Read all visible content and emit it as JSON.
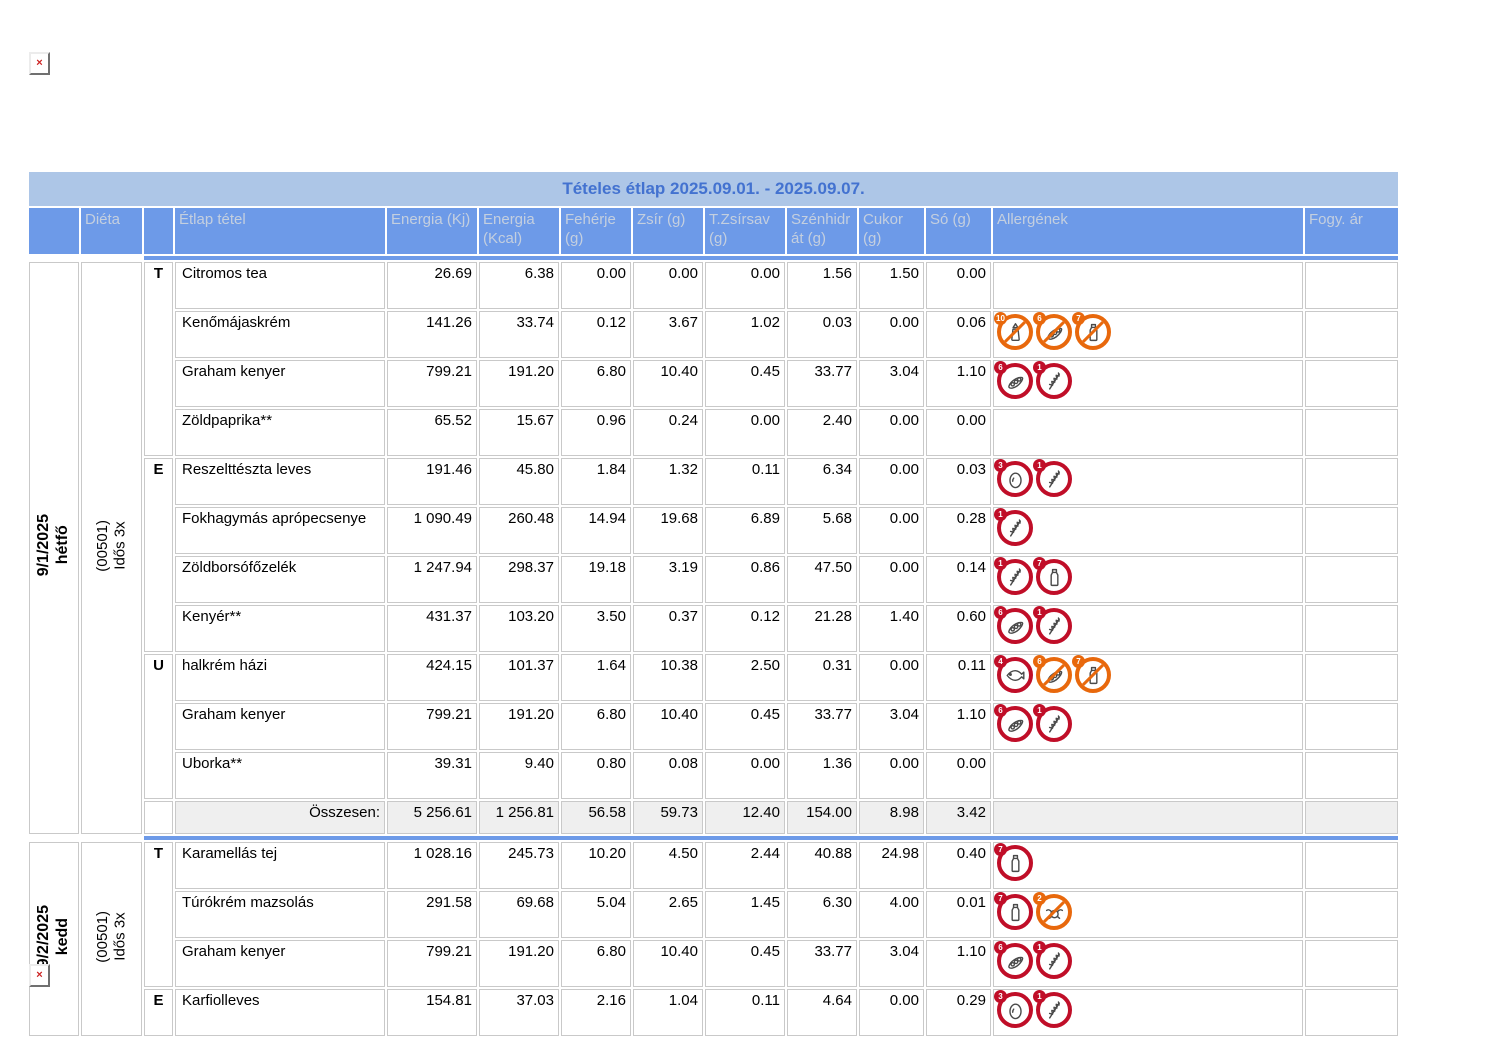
{
  "title": "Tételes étlap 2025.09.01. - 2025.09.07.",
  "broken_image_glyph": "×",
  "colors": {
    "header_blue": "#6d9ae8",
    "title_bar": "#adc6e7",
    "title_text": "#4372d0",
    "header_text": "#c4cfdf",
    "border": "#c9c9c9",
    "total_bg": "#efefef",
    "allergen_red": "#c00e28",
    "allergen_orange": "#e8680c",
    "broken_x": "#cc2222"
  },
  "columns": [
    {
      "key": "date",
      "label": ""
    },
    {
      "key": "dieta",
      "label": "Diéta"
    },
    {
      "key": "meal",
      "label": ""
    },
    {
      "key": "item",
      "label": "Étlap tétel"
    },
    {
      "key": "energia-kj",
      "label": "Energia (Kj)"
    },
    {
      "key": "energia-kcal",
      "label": "Energia (Kcal)"
    },
    {
      "key": "feherje",
      "label": "Fehérje (g)"
    },
    {
      "key": "zsir",
      "label": "Zsír (g)"
    },
    {
      "key": "t-zsirsav",
      "label": "T.Zsírsav (g)"
    },
    {
      "key": "szenhidrat",
      "label": "Szénhidrát (g)"
    },
    {
      "key": "cukor",
      "label": "Cukor (g)"
    },
    {
      "key": "so",
      "label": "Só (g)"
    },
    {
      "key": "allergenek",
      "label": "Allergének"
    },
    {
      "key": "fogy-ar",
      "label": "Fogy. ár"
    }
  ],
  "allergen_defs": {
    "gluten": {
      "num": "1",
      "icon": "wheat-icon"
    },
    "shellfish": {
      "num": "2",
      "icon": "crab-icon"
    },
    "egg": {
      "num": "3",
      "icon": "egg-icon"
    },
    "fish": {
      "num": "4",
      "icon": "fish-icon"
    },
    "soy": {
      "num": "6",
      "icon": "soy-pod-icon"
    },
    "milk": {
      "num": "7",
      "icon": "milk-bottle-icon"
    },
    "mustard": {
      "num": "10",
      "icon": "mustard-bottle-icon"
    }
  },
  "days": [
    {
      "date": "9/1/2025",
      "day_name": "hétfő",
      "diet_code": "(00501)",
      "diet_name": "Idős 3x",
      "rows": [
        {
          "meal": "T",
          "meal_rowspan": 4,
          "name": "Citromos tea",
          "values": [
            "26.69",
            "6.38",
            "0.00",
            "0.00",
            "0.00",
            "1.56",
            "1.50",
            "0.00"
          ],
          "allergens": []
        },
        {
          "name": "Kenőmájaskrém",
          "values": [
            "141.26",
            "33.74",
            "0.12",
            "3.67",
            "1.02",
            "0.03",
            "0.00",
            "0.06"
          ],
          "allergens": [
            {
              "type": "mustard",
              "state": "traces"
            },
            {
              "type": "soy",
              "state": "traces"
            },
            {
              "type": "milk",
              "state": "traces"
            }
          ]
        },
        {
          "name": "Graham kenyer",
          "values": [
            "799.21",
            "191.20",
            "6.80",
            "10.40",
            "0.45",
            "33.77",
            "3.04",
            "1.10"
          ],
          "allergens": [
            {
              "type": "soy",
              "state": "contains"
            },
            {
              "type": "gluten",
              "state": "contains"
            }
          ]
        },
        {
          "name": "Zöldpaprika**",
          "values": [
            "65.52",
            "15.67",
            "0.96",
            "0.24",
            "0.00",
            "2.40",
            "0.00",
            "0.00"
          ],
          "allergens": []
        },
        {
          "meal": "E",
          "meal_rowspan": 4,
          "name": "Reszelttészta leves",
          "values": [
            "191.46",
            "45.80",
            "1.84",
            "1.32",
            "0.11",
            "6.34",
            "0.00",
            "0.03"
          ],
          "allergens": [
            {
              "type": "egg",
              "state": "contains"
            },
            {
              "type": "gluten",
              "state": "contains"
            }
          ]
        },
        {
          "name": "Fokhagymás aprópecsenye",
          "values": [
            "1 090.49",
            "260.48",
            "14.94",
            "19.68",
            "6.89",
            "5.68",
            "0.00",
            "0.28"
          ],
          "allergens": [
            {
              "type": "gluten",
              "state": "contains"
            }
          ]
        },
        {
          "name": "Zöldborsófőzelék",
          "values": [
            "1 247.94",
            "298.37",
            "19.18",
            "3.19",
            "0.86",
            "47.50",
            "0.00",
            "0.14"
          ],
          "allergens": [
            {
              "type": "gluten",
              "state": "contains"
            },
            {
              "type": "milk",
              "state": "contains"
            }
          ]
        },
        {
          "name": "Kenyér**",
          "values": [
            "431.37",
            "103.20",
            "3.50",
            "0.37",
            "0.12",
            "21.28",
            "1.40",
            "0.60"
          ],
          "allergens": [
            {
              "type": "soy",
              "state": "contains"
            },
            {
              "type": "gluten",
              "state": "contains"
            }
          ]
        },
        {
          "meal": "U",
          "meal_rowspan": 3,
          "name": "halkrém házi",
          "values": [
            "424.15",
            "101.37",
            "1.64",
            "10.38",
            "2.50",
            "0.31",
            "0.00",
            "0.11"
          ],
          "allergens": [
            {
              "type": "fish",
              "state": "contains"
            },
            {
              "type": "soy",
              "state": "traces"
            },
            {
              "type": "milk",
              "state": "traces"
            }
          ]
        },
        {
          "name": "Graham kenyer",
          "values": [
            "799.21",
            "191.20",
            "6.80",
            "10.40",
            "0.45",
            "33.77",
            "3.04",
            "1.10"
          ],
          "allergens": [
            {
              "type": "soy",
              "state": "contains"
            },
            {
              "type": "gluten",
              "state": "contains"
            }
          ]
        },
        {
          "name": "Uborka**",
          "values": [
            "39.31",
            "9.40",
            "0.80",
            "0.08",
            "0.00",
            "1.36",
            "0.00",
            "0.00"
          ],
          "allergens": []
        }
      ],
      "total": {
        "label": "Összesen:",
        "values": [
          "5 256.61",
          "1 256.81",
          "56.58",
          "59.73",
          "12.40",
          "154.00",
          "8.98",
          "3.42"
        ]
      }
    },
    {
      "date": "9/2/2025",
      "day_name": "kedd",
      "diet_code": "(00501)",
      "diet_name": "Idős 3x",
      "rows": [
        {
          "meal": "T",
          "meal_rowspan": 3,
          "name": "Karamellás tej",
          "values": [
            "1 028.16",
            "245.73",
            "10.20",
            "4.50",
            "2.44",
            "40.88",
            "24.98",
            "0.40"
          ],
          "allergens": [
            {
              "type": "milk",
              "state": "contains"
            }
          ]
        },
        {
          "name": "Túrókrém mazsolás",
          "values": [
            "291.58",
            "69.68",
            "5.04",
            "2.65",
            "1.45",
            "6.30",
            "4.00",
            "0.01"
          ],
          "allergens": [
            {
              "type": "milk",
              "state": "contains"
            },
            {
              "type": "shellfish",
              "state": "traces"
            }
          ]
        },
        {
          "name": "Graham kenyer",
          "values": [
            "799.21",
            "191.20",
            "6.80",
            "10.40",
            "0.45",
            "33.77",
            "3.04",
            "1.10"
          ],
          "allergens": [
            {
              "type": "soy",
              "state": "contains"
            },
            {
              "type": "gluten",
              "state": "contains"
            }
          ]
        },
        {
          "meal": "E",
          "meal_rowspan": 1,
          "name": "Karfiolleves",
          "values": [
            "154.81",
            "37.03",
            "2.16",
            "1.04",
            "0.11",
            "4.64",
            "0.00",
            "0.29"
          ],
          "allergens": [
            {
              "type": "egg",
              "state": "contains"
            },
            {
              "type": "gluten",
              "state": "contains"
            }
          ]
        }
      ],
      "total": null
    }
  ]
}
